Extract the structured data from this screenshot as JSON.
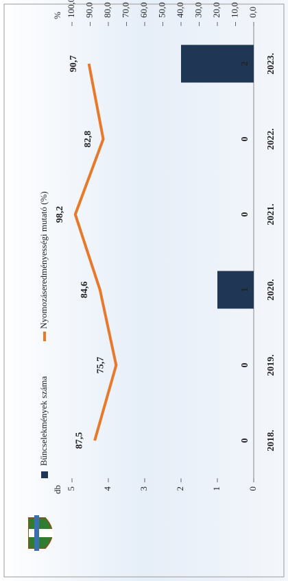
{
  "chart_data": {
    "type": "bar",
    "categories": [
      "2018.",
      "2019.",
      "2020.",
      "2021.",
      "2022.",
      "2023."
    ],
    "y_label": "db",
    "y2_label": "%",
    "ylim": [
      0,
      5
    ],
    "yticks": [
      0,
      1,
      2,
      3,
      4,
      5
    ],
    "y2lim": [
      0,
      100
    ],
    "y2ticks": [
      {
        "value": 0,
        "label": "0,0"
      },
      {
        "value": 10,
        "label": "10,0"
      },
      {
        "value": 20,
        "label": "20,0"
      },
      {
        "value": 30,
        "label": "30,0"
      },
      {
        "value": 40,
        "label": "40,0"
      },
      {
        "value": 50,
        "label": "50,0"
      },
      {
        "value": 60,
        "label": "60,0"
      },
      {
        "value": 70,
        "label": "70,0"
      },
      {
        "value": 80,
        "label": "80,0"
      },
      {
        "value": 90,
        "label": "90,0"
      },
      {
        "value": 100,
        "label": "100,0"
      }
    ],
    "series": [
      {
        "name": "Bűncselekmények száma",
        "type": "bar",
        "color": "#1f3654",
        "values": [
          0,
          0,
          1,
          0,
          0,
          2
        ]
      },
      {
        "name": "Nyomozáseredményességi mutató (%)",
        "type": "line",
        "axis": "y2",
        "color": "#e8792b",
        "values": [
          87.5,
          75.7,
          84.6,
          98.2,
          82.8,
          90.7
        ],
        "value_labels": [
          "87,5",
          "75,7",
          "84,6",
          "98,2",
          "82,8",
          "90,7"
        ]
      }
    ]
  }
}
